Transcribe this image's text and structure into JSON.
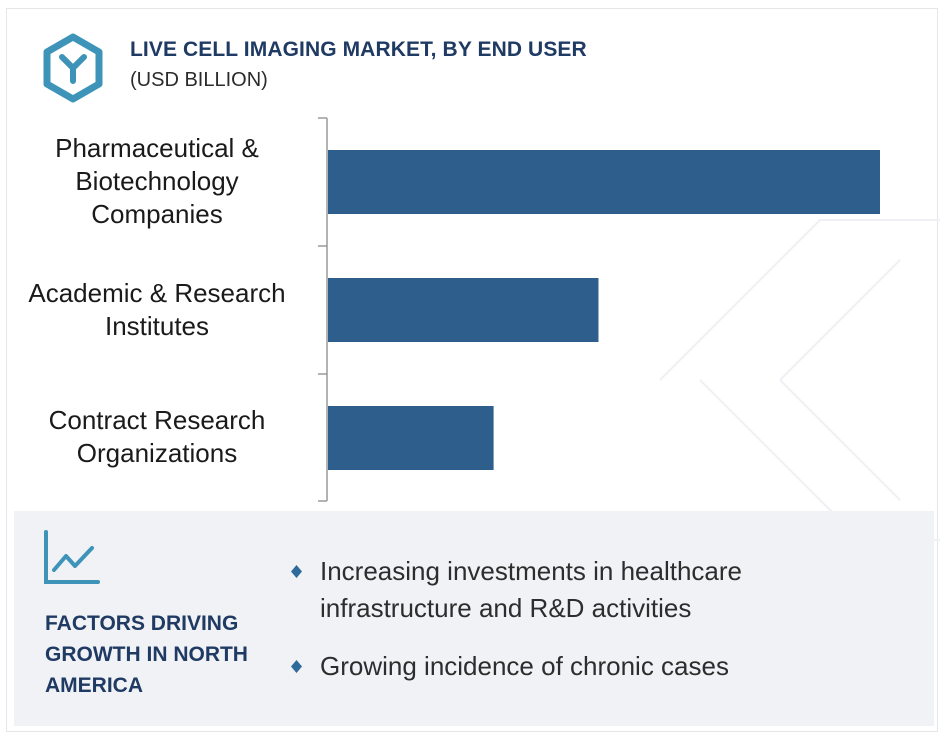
{
  "header": {
    "title": "LIVE CELL IMAGING MARKET, BY END USER",
    "subtitle": "(USD BILLION)"
  },
  "chart_data": {
    "type": "bar",
    "orientation": "horizontal",
    "categories": [
      "Pharmaceutical & Biotechnology Companies",
      "Academic & Research Institutes",
      "Contract Research Organizations"
    ],
    "values": [
      1.0,
      0.49,
      0.3
    ],
    "xlabel": "",
    "ylabel": "",
    "xlim": [
      0,
      1.0
    ],
    "grid": false,
    "bar_color": "#2e5f8c"
  },
  "factors": {
    "title": "FACTORS DRIVING GROWTH IN NORTH AMERICA",
    "items": [
      "Increasing investments in healthcare infrastructure and R&D activities",
      "Growing incidence of chronic cases"
    ]
  },
  "colors": {
    "accent": "#1f3a63",
    "icon": "#3d94b8",
    "bar": "#2e5f8c",
    "bullet": "#2e6a9a"
  },
  "icons": {
    "logo": "hexagon-y-logo-icon",
    "trend": "line-chart-icon",
    "bullet": "diamond-bullet-icon"
  }
}
